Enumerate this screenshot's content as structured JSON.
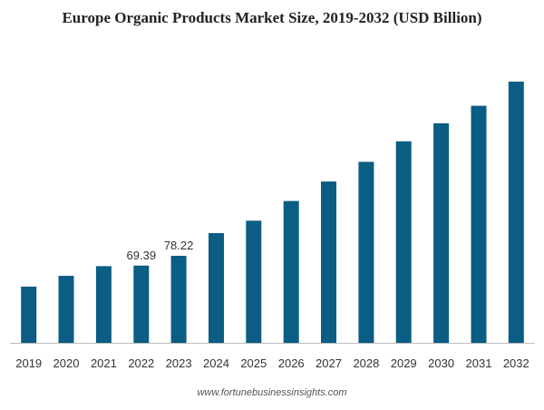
{
  "page": {
    "title": "Europe Organic Products Market Size, 2019-2032 (USD Billion)",
    "source": "www.fortunebusinessinsights.com"
  },
  "colors": {
    "bar": "#0B5D84",
    "axis": "#BFBFBF",
    "tick_text": "#333333",
    "label_text": "#333333"
  },
  "chart_data": {
    "type": "bar",
    "title": "Europe Organic Products Market Size, 2019-2032 (USD Billion)",
    "xlabel": "",
    "ylabel": "",
    "categories": [
      "2019",
      "2020",
      "2021",
      "2022",
      "2023",
      "2024",
      "2025",
      "2026",
      "2027",
      "2028",
      "2029",
      "2030",
      "2031",
      "2032"
    ],
    "values": [
      50.5,
      60.2,
      68.9,
      69.39,
      78.22,
      98.6,
      109.7,
      127.4,
      144.9,
      162.6,
      181.0,
      197.2,
      212.9,
      234.6
    ],
    "data_labels": [
      null,
      null,
      null,
      "69.39",
      "78.22",
      null,
      null,
      null,
      null,
      null,
      null,
      null,
      null,
      null
    ],
    "ylim": [
      0,
      234.6
    ],
    "grid": false,
    "legend": "none"
  }
}
